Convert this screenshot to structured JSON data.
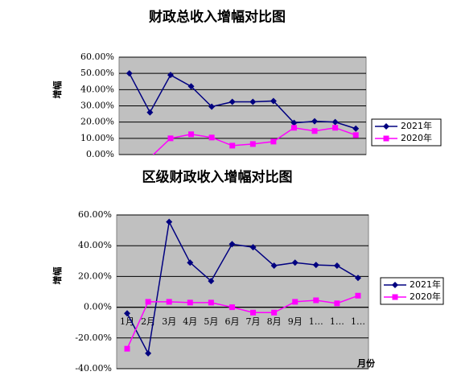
{
  "chart_data": [
    {
      "type": "line",
      "title": "财政总收入增幅对比图",
      "y_label": "增幅",
      "categories": [
        null,
        null,
        null,
        null,
        null,
        null,
        null,
        null,
        null,
        null,
        null,
        null
      ],
      "series": [
        {
          "name": "2021年",
          "color": "#000080",
          "values": [
            50,
            26,
            49,
            42,
            29.5,
            32.5,
            32.5,
            33,
            19.5,
            20.5,
            20,
            16
          ]
        },
        {
          "name": "2020年",
          "color": "#ff00ff",
          "values": [
            null,
            -2,
            10,
            12.5,
            10.5,
            5.5,
            6.5,
            8,
            16.5,
            14.5,
            16.5,
            12
          ]
        }
      ],
      "ylim": [
        0,
        60
      ],
      "yticks": [
        {
          "value": 0,
          "label": "0.00%"
        },
        {
          "value": 10,
          "label": "10.00%"
        },
        {
          "value": 20,
          "label": "20.00%"
        },
        {
          "value": 30,
          "label": "30.00%"
        },
        {
          "value": 40,
          "label": "40.00%"
        },
        {
          "value": 50,
          "label": "50.00%"
        },
        {
          "value": 60,
          "label": "60.00%"
        }
      ],
      "grid": true
    },
    {
      "type": "line",
      "title": "区级财政收入增幅对比图",
      "y_label": "增幅",
      "x_label": "月份",
      "categories": [
        "1月",
        "2月",
        "3月",
        "4月",
        "5月",
        "6月",
        "7月",
        "8月",
        "9月",
        "1…",
        "1…",
        "1…"
      ],
      "series": [
        {
          "name": "2021年",
          "color": "#000080",
          "values": [
            -4,
            -30,
            55.5,
            29,
            17,
            41,
            39,
            27,
            29,
            27.5,
            27,
            19
          ]
        },
        {
          "name": "2020年",
          "color": "#ff00ff",
          "values": [
            -27,
            3.5,
            3.5,
            3,
            3,
            0,
            -3.5,
            -3.5,
            3.5,
            4.5,
            2.5,
            7.5
          ]
        }
      ],
      "ylim": [
        -40,
        60
      ],
      "yticks": [
        {
          "value": -40,
          "label": "-40.00%"
        },
        {
          "value": -20,
          "label": "-20.00%"
        },
        {
          "value": 0,
          "label": "0.00%"
        },
        {
          "value": 20,
          "label": "20.00%"
        },
        {
          "value": 40,
          "label": "40.00%"
        },
        {
          "value": 60,
          "label": "60.00%"
        }
      ],
      "grid": true
    }
  ]
}
